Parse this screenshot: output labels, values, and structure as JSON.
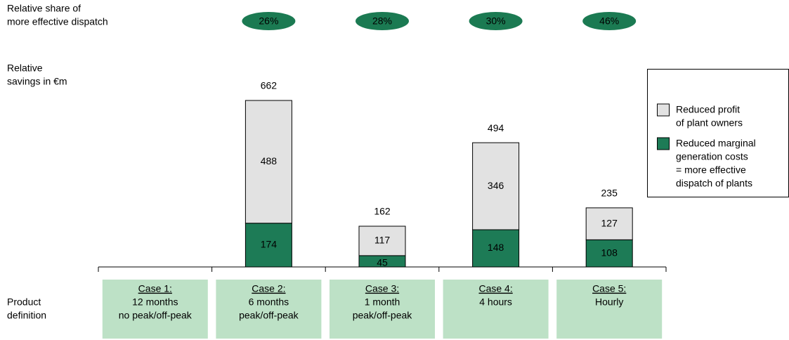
{
  "chart_data": {
    "type": "stacked_bar",
    "row_labels": {
      "share": [
        "Relative share of",
        "more effective dispatch"
      ],
      "savings": [
        "Relative",
        "savings in €m"
      ],
      "product": [
        "Product",
        "definition"
      ]
    },
    "categories": [
      "Case 1:",
      "Case 2:",
      "Case 3:",
      "Case 4:",
      "Case 5:"
    ],
    "category_details": [
      [
        "12 months",
        "no peak/off-peak"
      ],
      [
        "6 months",
        "peak/off-peak"
      ],
      [
        "1 month",
        "peak/off-peak"
      ],
      [
        "4 hours"
      ],
      [
        "Hourly"
      ]
    ],
    "share_values": [
      null,
      26,
      28,
      30,
      46
    ],
    "share_value_labels": [
      null,
      "26%",
      "28%",
      "30%",
      "46%"
    ],
    "share_color": "#1b7a52",
    "series": [
      {
        "name": [
          "Reduced marginal",
          "generation costs",
          "= more effective",
          "dispatch of plants"
        ],
        "color": "#1d7b56",
        "label_color": "#ffffff",
        "values": [
          null,
          174,
          45,
          148,
          108
        ]
      },
      {
        "name": [
          "Reduced profit",
          "of plant owners"
        ],
        "color": "#e2e2e2",
        "label_color": "#000000",
        "values": [
          null,
          488,
          117,
          346,
          127
        ]
      }
    ],
    "totals": [
      null,
      662,
      162,
      494,
      235
    ],
    "case_box_color": "#bde1c6"
  }
}
